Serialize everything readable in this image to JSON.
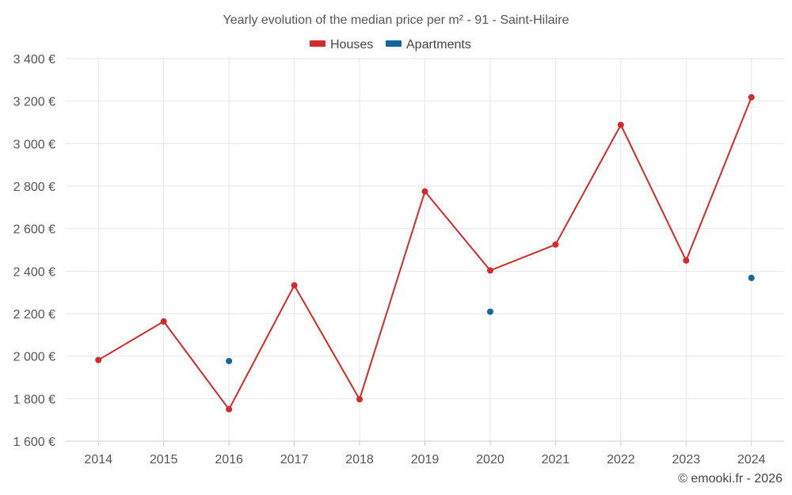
{
  "chart_data": {
    "type": "line",
    "title": "Yearly evolution of the median price per m² - 91 - Saint-Hilaire",
    "xlabel": "",
    "ylabel": "",
    "categories": [
      "2014",
      "2015",
      "2016",
      "2017",
      "2018",
      "2019",
      "2020",
      "2021",
      "2022",
      "2023",
      "2024"
    ],
    "ylim": [
      1600,
      3400
    ],
    "yticks": [
      1600,
      1800,
      2000,
      2200,
      2400,
      2600,
      2800,
      3000,
      3200,
      3400
    ],
    "ytick_labels": [
      "1 600 €",
      "1 800 €",
      "2 000 €",
      "2 200 €",
      "2 400 €",
      "2 600 €",
      "2 800 €",
      "3 000 €",
      "3 200 €",
      "3 400 €"
    ],
    "grid": true,
    "legend_position": "top-center",
    "series": [
      {
        "name": "Houses",
        "color": "#d42a2a",
        "style": "line-with-markers",
        "values": [
          1982,
          2163,
          1750,
          2333,
          1797,
          2775,
          2403,
          2525,
          3088,
          2450,
          3218
        ]
      },
      {
        "name": "Apartments",
        "color": "#1565a0",
        "style": "markers-only",
        "values": [
          null,
          null,
          1977,
          null,
          null,
          null,
          2209,
          null,
          null,
          null,
          2368
        ]
      }
    ]
  },
  "credit": "© emooki.fr - 2026"
}
